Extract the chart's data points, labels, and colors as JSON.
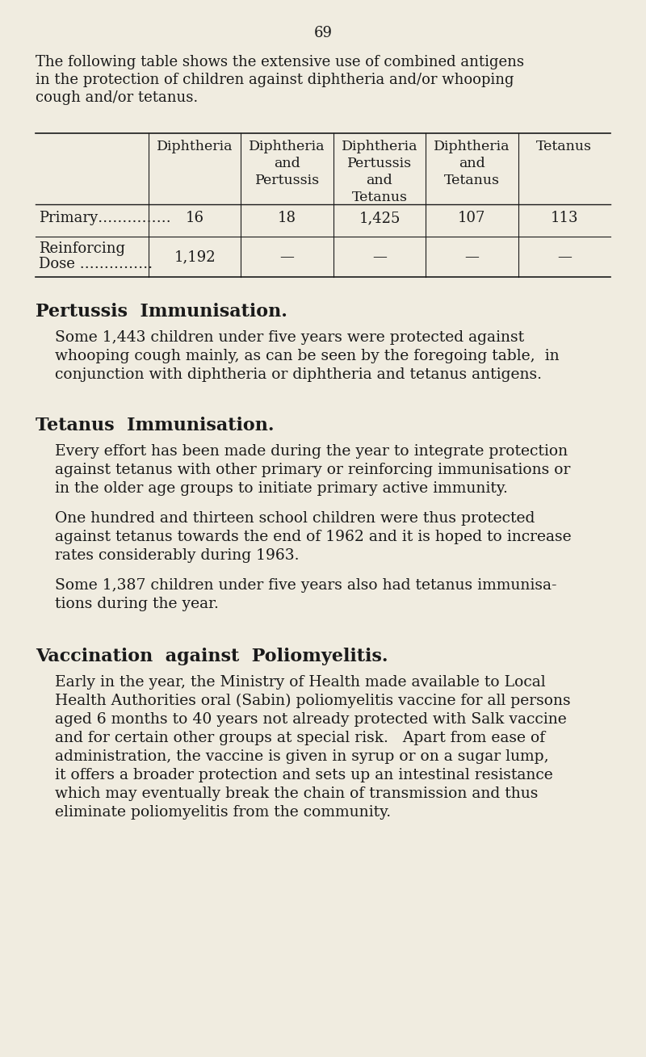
{
  "bg_color": "#f0ece0",
  "text_color": "#1a1a1a",
  "page_number": "69",
  "intro_text_lines": [
    "The following table shows the extensive use of combined antigens",
    "in the protection of children against diphtheria and/or whooping",
    "cough and/or tetanus."
  ],
  "table": {
    "col_headers": [
      "Diphtheria",
      "Diphtheria\nand\nPertussis",
      "Diphtheria\nPertussis\nand\nTetanus",
      "Diphtheria\nand\nTetanus",
      "Tetanus"
    ],
    "rows": [
      {
        "label": "Primary……………",
        "values": [
          "16",
          "18",
          "1,425",
          "107",
          "113"
        ]
      },
      {
        "label": "Reinforcing\nDose ……………",
        "values": [
          "1,192",
          "—",
          "—",
          "—",
          "—"
        ]
      }
    ]
  },
  "section1_heading": "Pertussis  Immunisation.",
  "section1_body_lines": [
    "Some 1,443 children under five years were protected against",
    "whooping cough mainly, as can be seen by the foregoing table,  in",
    "conjunction with diphtheria or diphtheria and tetanus antigens."
  ],
  "section2_heading": "Tetanus  Immunisation.",
  "section2_body1_lines": [
    "Every effort has been made during the year to integrate protection",
    "against tetanus with other primary or reinforcing immunisations or",
    "in the older age groups to initiate primary active immunity."
  ],
  "section2_body2_lines": [
    "One hundred and thirteen school children were thus protected",
    "against tetanus towards the end of 1962 and it is hoped to increase",
    "rates considerably during 1963."
  ],
  "section2_body3_lines": [
    "Some 1,387 children under five years also had tetanus immunisa-",
    "tions during the year."
  ],
  "section3_heading": "Vaccination  against  Poliomyelitis.",
  "section3_body_lines": [
    "Early in the year, the Ministry of Health made available to Local",
    "Health Authorities oral (Sabin) poliomyelitis vaccine for all persons",
    "aged 6 months to 40 years not already protected with Salk vaccine",
    "and for certain other groups at special risk.   Apart from ease of",
    "administration, the vaccine is given in syrup or on a sugar lump,",
    "it offers a broader protection and sets up an intestinal resistance",
    "which may eventually break the chain of transmission and thus",
    "eliminate poliomyelitis from the community."
  ]
}
